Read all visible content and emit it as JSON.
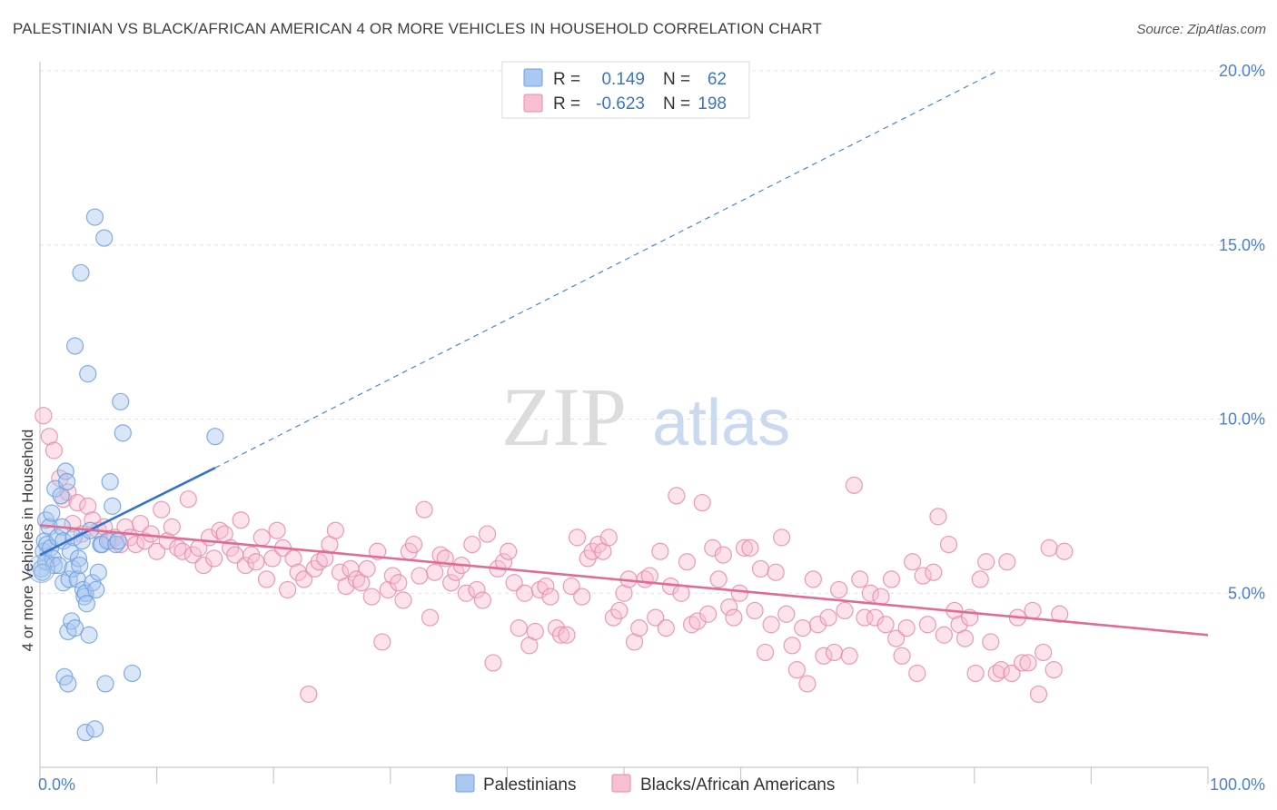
{
  "title": "PALESTINIAN VS BLACK/AFRICAN AMERICAN 4 OR MORE VEHICLES IN HOUSEHOLD CORRELATION CHART",
  "source": "Source: ZipAtlas.com",
  "watermark": {
    "zip": "ZIP",
    "atlas": "atlas"
  },
  "legend": {
    "r_label": "R =",
    "n_label": "N =",
    "rows": [
      {
        "r": "0.149",
        "n": "62",
        "color": "#aac8f0",
        "stroke": "#6f9fe0"
      },
      {
        "r": "-0.623",
        "n": "198",
        "color": "#f7bfd2",
        "stroke": "#e98aaa"
      }
    ]
  },
  "bottom_legend": [
    "Palestinians",
    "Blacks/African Americans"
  ],
  "chart_data": {
    "type": "scatter",
    "xlabel": "",
    "ylabel": "4 or more Vehicles in Household",
    "xlim": [
      0,
      100
    ],
    "ylim": [
      0,
      21
    ],
    "x_tick_labels": [
      "0.0%",
      "100.0%"
    ],
    "y_ticks": [
      5,
      10,
      15,
      20
    ],
    "y_tick_labels": [
      "5.0%",
      "10.0%",
      "15.0%",
      "20.0%"
    ],
    "grid": true,
    "legend_position": "top-center",
    "series": [
      {
        "name": "Palestinians",
        "color": "#6f9fe0",
        "fill": "#aac8f0",
        "trend": {
          "x": [
            0,
            15
          ],
          "y": [
            6.1,
            8.6
          ],
          "dashed_extension_to": [
            82,
            20.0
          ]
        },
        "points": [
          [
            0.1,
            5.7
          ],
          [
            0.3,
            6.2
          ],
          [
            0.4,
            6.5
          ],
          [
            0.5,
            7.1
          ],
          [
            0.5,
            5.9
          ],
          [
            0.6,
            6.4
          ],
          [
            0.8,
            6.9
          ],
          [
            0.9,
            6.3
          ],
          [
            1.0,
            7.3
          ],
          [
            1.1,
            6.0
          ],
          [
            1.2,
            5.8
          ],
          [
            1.3,
            8.0
          ],
          [
            1.5,
            6.6
          ],
          [
            1.6,
            5.8
          ],
          [
            1.8,
            7.8
          ],
          [
            1.9,
            6.9
          ],
          [
            2.0,
            6.5
          ],
          [
            2.0,
            5.3
          ],
          [
            2.1,
            2.6
          ],
          [
            2.2,
            8.5
          ],
          [
            2.3,
            8.2
          ],
          [
            2.4,
            3.9
          ],
          [
            2.4,
            2.4
          ],
          [
            2.5,
            5.4
          ],
          [
            2.6,
            6.2
          ],
          [
            2.7,
            4.2
          ],
          [
            2.8,
            5.7
          ],
          [
            2.9,
            6.6
          ],
          [
            3.0,
            4.0
          ],
          [
            3.0,
            12.1
          ],
          [
            3.2,
            5.4
          ],
          [
            3.3,
            6.0
          ],
          [
            3.4,
            5.8
          ],
          [
            3.5,
            14.2
          ],
          [
            3.6,
            6.5
          ],
          [
            3.7,
            5.1
          ],
          [
            3.8,
            4.9
          ],
          [
            3.9,
            1.0
          ],
          [
            3.9,
            5.0
          ],
          [
            4.0,
            4.7
          ],
          [
            4.1,
            11.3
          ],
          [
            4.2,
            3.8
          ],
          [
            4.3,
            6.8
          ],
          [
            4.5,
            5.3
          ],
          [
            4.7,
            15.8
          ],
          [
            4.7,
            1.1
          ],
          [
            4.8,
            5.1
          ],
          [
            5.0,
            5.6
          ],
          [
            5.2,
            6.4
          ],
          [
            5.3,
            6.4
          ],
          [
            5.5,
            15.2
          ],
          [
            5.6,
            2.4
          ],
          [
            5.8,
            6.5
          ],
          [
            6.0,
            8.2
          ],
          [
            6.2,
            7.5
          ],
          [
            6.5,
            6.4
          ],
          [
            6.7,
            6.5
          ],
          [
            6.9,
            10.5
          ],
          [
            7.1,
            9.6
          ],
          [
            7.9,
            2.7
          ],
          [
            15.0,
            9.5
          ],
          [
            0.2,
            5.6
          ]
        ]
      },
      {
        "name": "Blacks/African Americans",
        "color": "#e98aaa",
        "fill": "#f7bfd2",
        "trend": {
          "x": [
            0,
            100
          ],
          "y": [
            6.95,
            3.8
          ]
        },
        "points": [
          [
            0.3,
            10.1
          ],
          [
            0.8,
            9.5
          ],
          [
            1.2,
            9.1
          ],
          [
            1.7,
            8.3
          ],
          [
            2.0,
            7.7
          ],
          [
            2.4,
            7.9
          ],
          [
            2.8,
            7.0
          ],
          [
            3.2,
            7.6
          ],
          [
            3.6,
            6.7
          ],
          [
            4.1,
            7.5
          ],
          [
            4.5,
            7.1
          ],
          [
            5.0,
            6.8
          ],
          [
            5.5,
            6.9
          ],
          [
            6.0,
            6.5
          ],
          [
            6.4,
            6.6
          ],
          [
            6.9,
            6.4
          ],
          [
            7.3,
            6.9
          ],
          [
            7.7,
            6.6
          ],
          [
            8.2,
            6.4
          ],
          [
            8.6,
            7.0
          ],
          [
            9.0,
            6.5
          ],
          [
            9.5,
            6.7
          ],
          [
            10.0,
            6.2
          ],
          [
            10.4,
            7.4
          ],
          [
            10.9,
            6.5
          ],
          [
            11.3,
            6.9
          ],
          [
            11.8,
            6.3
          ],
          [
            12.2,
            6.2
          ],
          [
            12.7,
            7.7
          ],
          [
            13.1,
            6.1
          ],
          [
            13.6,
            6.3
          ],
          [
            14.0,
            5.8
          ],
          [
            14.5,
            6.6
          ],
          [
            14.9,
            6.0
          ],
          [
            15.4,
            6.8
          ],
          [
            15.8,
            6.7
          ],
          [
            16.3,
            6.3
          ],
          [
            16.7,
            6.1
          ],
          [
            17.2,
            7.1
          ],
          [
            17.6,
            5.8
          ],
          [
            18.1,
            6.1
          ],
          [
            18.5,
            5.9
          ],
          [
            19.0,
            6.6
          ],
          [
            19.4,
            5.4
          ],
          [
            19.9,
            6.0
          ],
          [
            20.3,
            6.8
          ],
          [
            20.8,
            6.3
          ],
          [
            21.2,
            5.1
          ],
          [
            21.7,
            6.0
          ],
          [
            22.1,
            5.6
          ],
          [
            22.6,
            5.4
          ],
          [
            23.0,
            2.1
          ],
          [
            23.5,
            5.7
          ],
          [
            23.9,
            5.9
          ],
          [
            24.4,
            6.0
          ],
          [
            24.8,
            6.4
          ],
          [
            25.3,
            6.8
          ],
          [
            25.7,
            5.6
          ],
          [
            26.2,
            5.2
          ],
          [
            26.6,
            5.7
          ],
          [
            27.1,
            5.4
          ],
          [
            27.5,
            5.3
          ],
          [
            28.0,
            5.7
          ],
          [
            28.4,
            4.9
          ],
          [
            28.9,
            6.2
          ],
          [
            29.3,
            3.6
          ],
          [
            29.8,
            5.1
          ],
          [
            30.2,
            5.5
          ],
          [
            30.7,
            5.3
          ],
          [
            31.1,
            4.8
          ],
          [
            31.6,
            6.2
          ],
          [
            32.0,
            6.4
          ],
          [
            32.5,
            5.5
          ],
          [
            32.9,
            7.4
          ],
          [
            33.4,
            4.3
          ],
          [
            33.8,
            5.6
          ],
          [
            34.3,
            6.1
          ],
          [
            34.7,
            6.0
          ],
          [
            35.2,
            5.3
          ],
          [
            35.6,
            5.6
          ],
          [
            36.1,
            5.8
          ],
          [
            36.5,
            5.0
          ],
          [
            37.0,
            6.4
          ],
          [
            37.4,
            5.1
          ],
          [
            37.9,
            4.8
          ],
          [
            38.3,
            6.7
          ],
          [
            38.8,
            3.0
          ],
          [
            39.2,
            5.7
          ],
          [
            39.7,
            5.9
          ],
          [
            40.1,
            6.2
          ],
          [
            40.6,
            5.3
          ],
          [
            41.0,
            4.0
          ],
          [
            41.5,
            5.0
          ],
          [
            41.9,
            3.5
          ],
          [
            42.4,
            3.9
          ],
          [
            42.8,
            5.1
          ],
          [
            43.3,
            5.2
          ],
          [
            43.7,
            4.9
          ],
          [
            44.2,
            4.0
          ],
          [
            44.6,
            3.8
          ],
          [
            45.1,
            3.8
          ],
          [
            45.5,
            5.2
          ],
          [
            46.0,
            6.6
          ],
          [
            46.4,
            4.9
          ],
          [
            46.9,
            6.0
          ],
          [
            47.3,
            6.2
          ],
          [
            47.8,
            6.4
          ],
          [
            48.2,
            6.2
          ],
          [
            48.7,
            6.6
          ],
          [
            49.1,
            4.3
          ],
          [
            49.6,
            4.5
          ],
          [
            50.0,
            5.0
          ],
          [
            50.4,
            5.4
          ],
          [
            50.9,
            3.6
          ],
          [
            51.3,
            4.0
          ],
          [
            51.8,
            5.4
          ],
          [
            52.2,
            5.5
          ],
          [
            52.7,
            4.3
          ],
          [
            53.1,
            6.2
          ],
          [
            53.6,
            4.0
          ],
          [
            54.0,
            5.2
          ],
          [
            54.5,
            7.8
          ],
          [
            54.9,
            5.0
          ],
          [
            55.4,
            5.9
          ],
          [
            55.8,
            4.1
          ],
          [
            56.3,
            4.2
          ],
          [
            56.7,
            7.6
          ],
          [
            57.2,
            4.4
          ],
          [
            57.6,
            6.3
          ],
          [
            58.1,
            5.4
          ],
          [
            58.5,
            6.1
          ],
          [
            59.0,
            4.6
          ],
          [
            59.4,
            4.3
          ],
          [
            59.9,
            5.0
          ],
          [
            60.3,
            6.3
          ],
          [
            60.8,
            6.3
          ],
          [
            61.2,
            4.5
          ],
          [
            61.7,
            5.7
          ],
          [
            62.1,
            3.3
          ],
          [
            62.6,
            4.1
          ],
          [
            63.0,
            5.6
          ],
          [
            63.5,
            6.6
          ],
          [
            63.9,
            4.4
          ],
          [
            64.4,
            3.5
          ],
          [
            64.8,
            2.8
          ],
          [
            65.3,
            4.0
          ],
          [
            65.7,
            2.4
          ],
          [
            66.2,
            5.4
          ],
          [
            66.6,
            4.1
          ],
          [
            67.1,
            3.2
          ],
          [
            67.5,
            4.3
          ],
          [
            68.0,
            3.3
          ],
          [
            68.4,
            5.1
          ],
          [
            68.9,
            4.5
          ],
          [
            69.3,
            3.2
          ],
          [
            69.7,
            8.1
          ],
          [
            70.2,
            5.4
          ],
          [
            70.6,
            4.3
          ],
          [
            71.1,
            5.0
          ],
          [
            71.5,
            4.3
          ],
          [
            72.0,
            4.9
          ],
          [
            72.4,
            4.1
          ],
          [
            72.9,
            5.4
          ],
          [
            73.3,
            3.7
          ],
          [
            73.8,
            3.2
          ],
          [
            74.2,
            4.0
          ],
          [
            74.7,
            5.9
          ],
          [
            75.1,
            2.7
          ],
          [
            75.6,
            5.5
          ],
          [
            76.0,
            4.1
          ],
          [
            76.5,
            5.6
          ],
          [
            76.9,
            7.2
          ],
          [
            77.4,
            3.8
          ],
          [
            77.8,
            6.4
          ],
          [
            78.3,
            4.5
          ],
          [
            78.7,
            4.1
          ],
          [
            79.2,
            3.7
          ],
          [
            79.6,
            4.3
          ],
          [
            80.1,
            2.7
          ],
          [
            80.5,
            5.4
          ],
          [
            81.0,
            5.9
          ],
          [
            81.4,
            3.6
          ],
          [
            81.9,
            2.7
          ],
          [
            82.3,
            2.8
          ],
          [
            82.8,
            5.9
          ],
          [
            83.2,
            2.7
          ],
          [
            83.7,
            4.3
          ],
          [
            84.1,
            3.0
          ],
          [
            84.6,
            3.0
          ],
          [
            85.0,
            4.5
          ],
          [
            85.5,
            2.1
          ],
          [
            85.9,
            3.3
          ],
          [
            86.4,
            6.3
          ],
          [
            86.8,
            2.8
          ],
          [
            87.3,
            4.4
          ],
          [
            87.7,
            6.2
          ]
        ]
      }
    ]
  }
}
